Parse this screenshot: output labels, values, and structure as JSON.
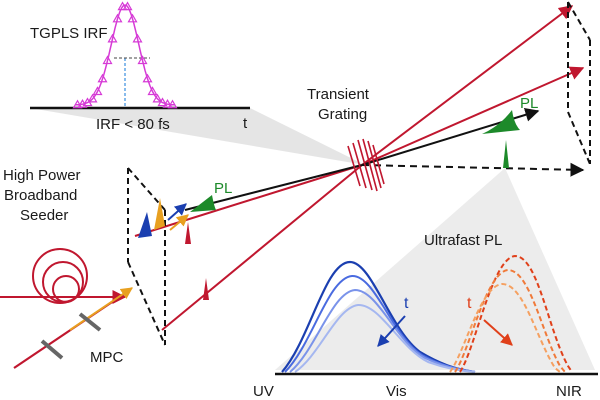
{
  "labels": {
    "tgpls_irf": "TGPLS IRF",
    "irf_note": "IRF < 80 fs",
    "irf_axis_t": "t",
    "transient_grating_1": "Transient",
    "transient_grating_2": "Grating",
    "seeder_1": "High Power",
    "seeder_2": "Broadband",
    "seeder_3": "Seeder",
    "pl_left": "PL",
    "pl_right": "PL",
    "ultrafast_pl": "Ultrafast PL",
    "mpc": "MPC",
    "axis_uv": "UV",
    "axis_vis": "Vis",
    "axis_nir": "NIR",
    "t_blue": "t",
    "t_red": "t"
  },
  "colors": {
    "beam_red": "#c0172f",
    "pl_green": "#1d8a2a",
    "irf_magenta": "#d63ad6",
    "spectrum_blue": "#1b3fb0",
    "spectrum_red": "#e0401a",
    "dashed_black": "#111111",
    "cone_gray": "#d9d9d9"
  },
  "irf_points": [
    -1.9,
    -1.7,
    -1.5,
    -1.3,
    -1.1,
    -0.9,
    -0.7,
    -0.5,
    -0.3,
    -0.1,
    0.1,
    0.3,
    0.5,
    0.7,
    0.9,
    1.1,
    1.3,
    1.5,
    1.7,
    1.9
  ]
}
